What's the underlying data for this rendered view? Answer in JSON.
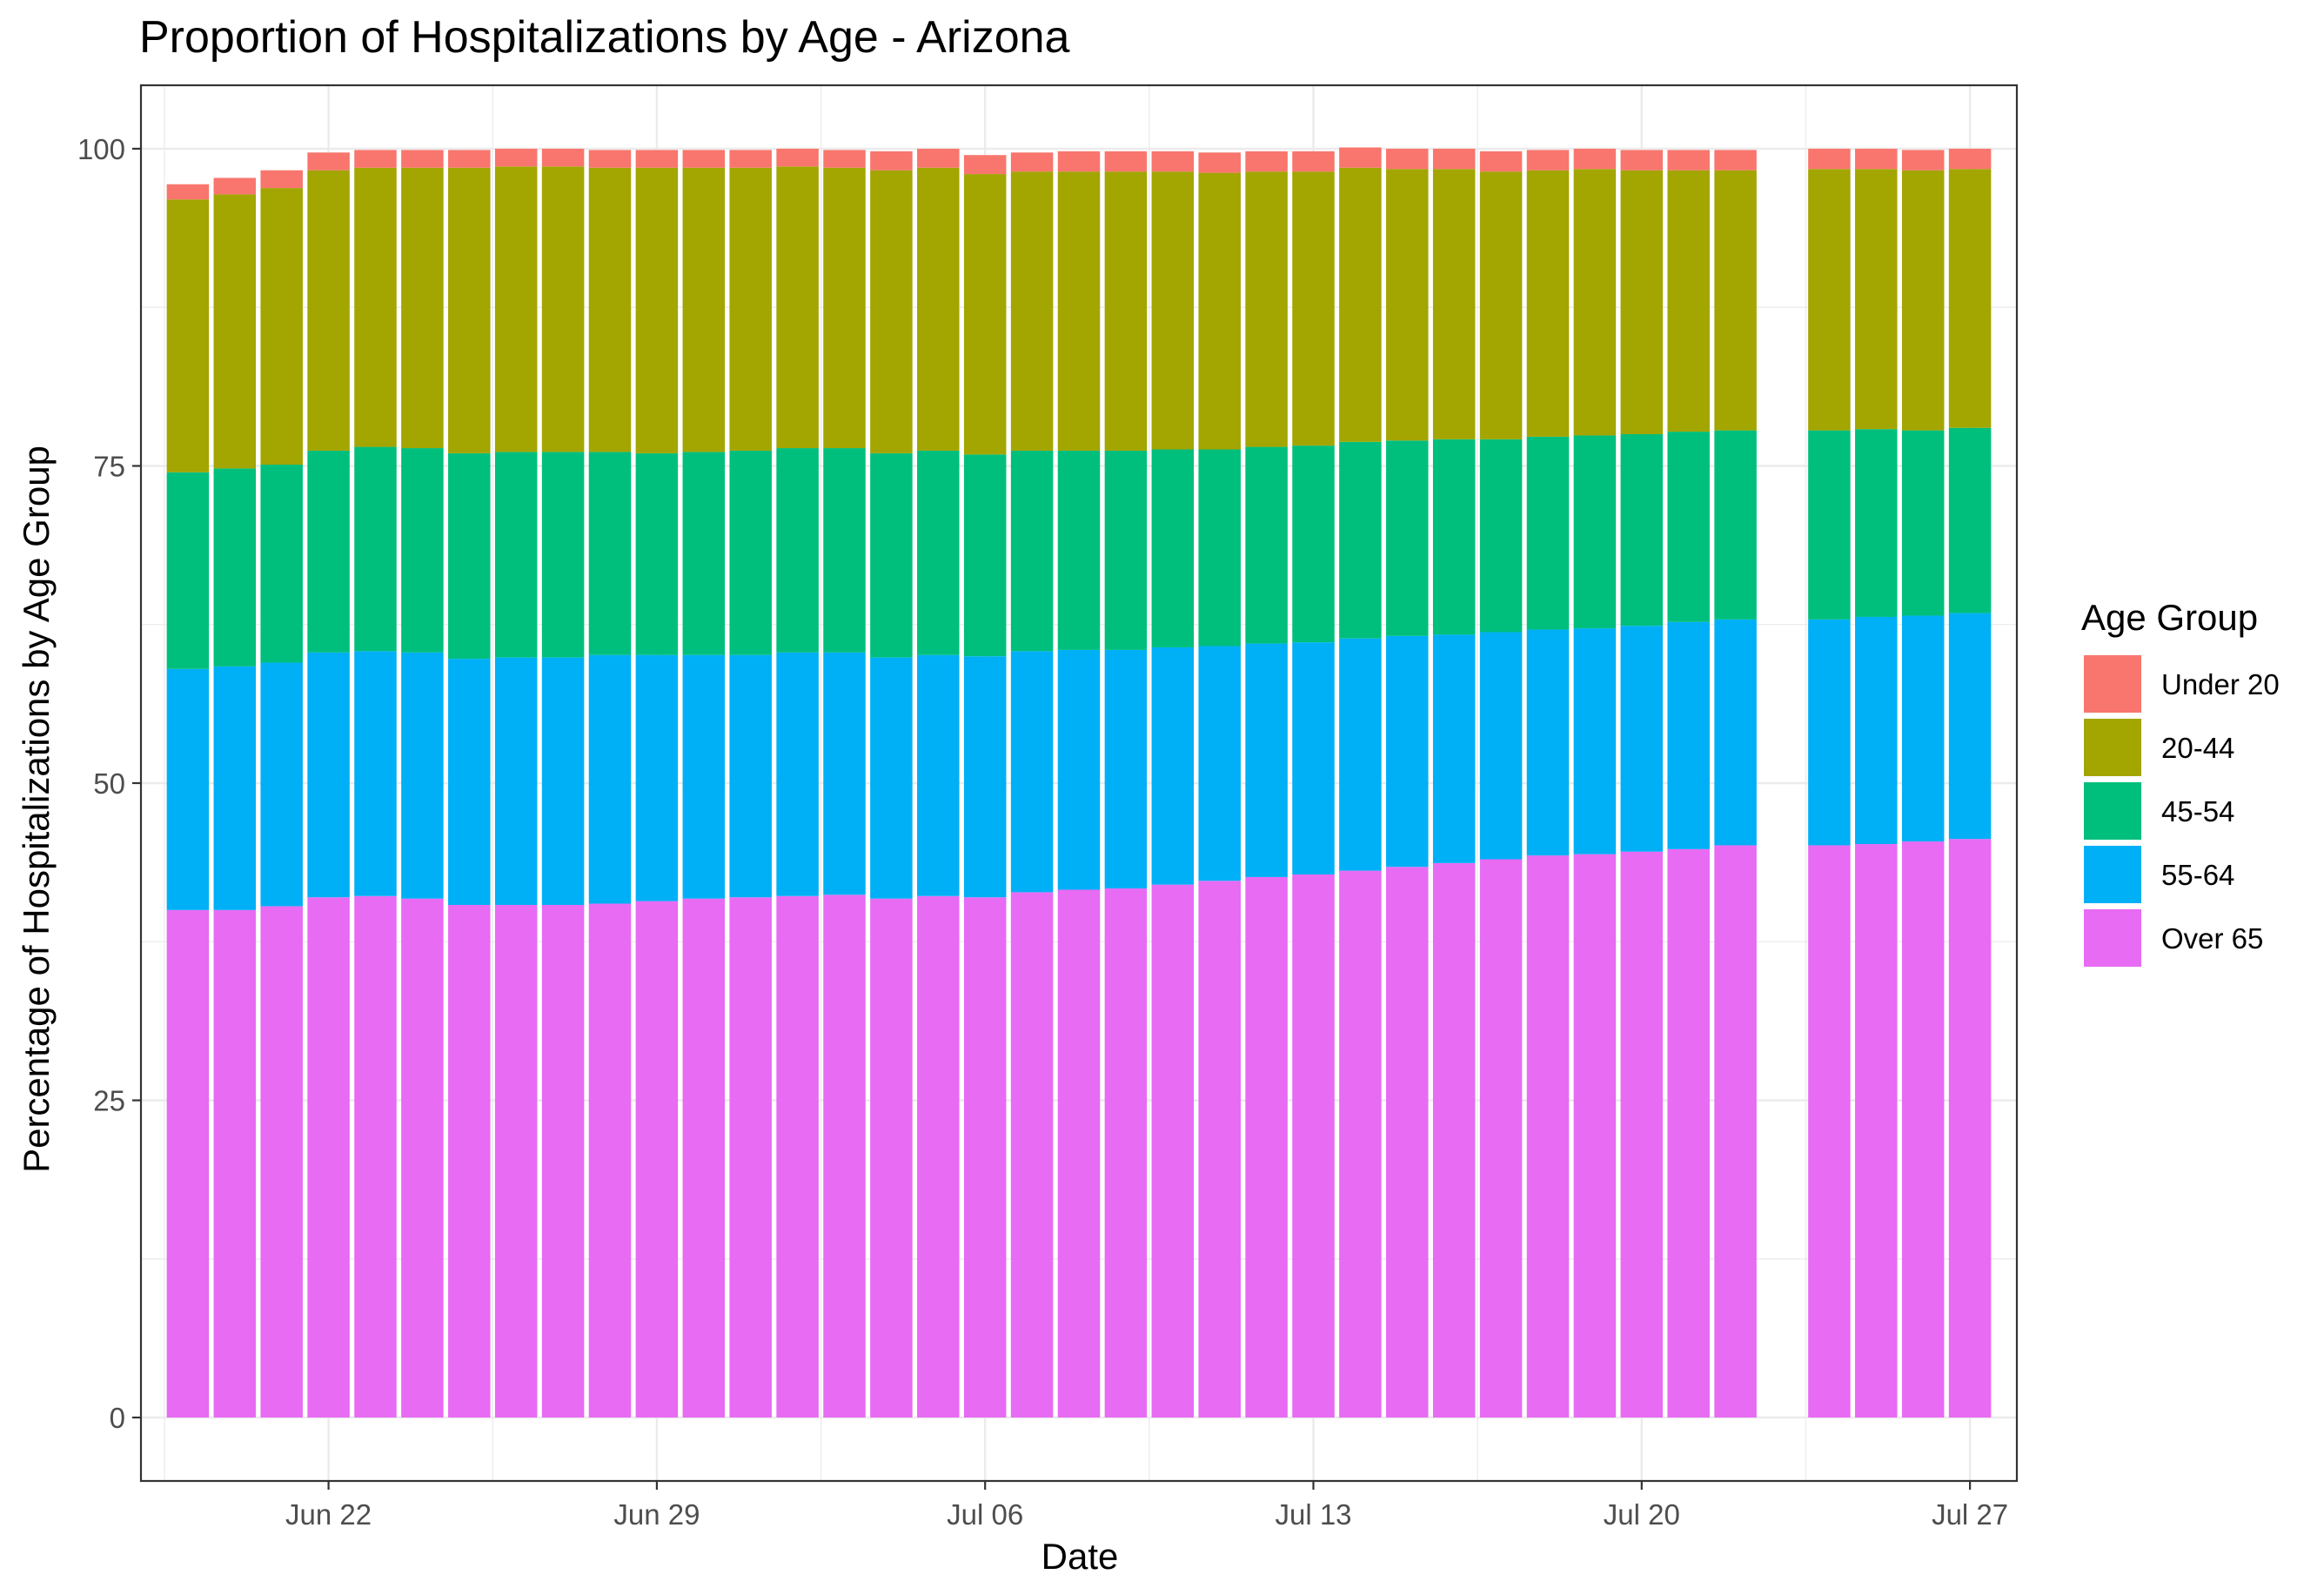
{
  "chart_data": {
    "type": "bar",
    "stacked": true,
    "title": "Proportion of Hospitalizations by Age - Arizona",
    "xlabel": "Date",
    "ylabel": "Percentage of Hospitalizations by Age Group",
    "ylim": [
      -5,
      105
    ],
    "yticks": [
      0,
      25,
      50,
      75,
      100
    ],
    "x_tick_labels": [
      "Jun 22",
      "Jun 29",
      "Jul 06",
      "Jul 13",
      "Jul 20",
      "Jul 27"
    ],
    "x_tick_dates": [
      "2020-06-22",
      "2020-06-29",
      "2020-07-06",
      "2020-07-13",
      "2020-07-20",
      "2020-07-27"
    ],
    "xlim": [
      "2020-06-18",
      "2020-07-28"
    ],
    "grid": true,
    "legend_position": "right",
    "legend_title": "Age Group",
    "dates": [
      "2020-06-19",
      "2020-06-20",
      "2020-06-21",
      "2020-06-22",
      "2020-06-23",
      "2020-06-24",
      "2020-06-25",
      "2020-06-26",
      "2020-06-27",
      "2020-06-28",
      "2020-06-29",
      "2020-06-30",
      "2020-07-01",
      "2020-07-02",
      "2020-07-03",
      "2020-07-04",
      "2020-07-05",
      "2020-07-06",
      "2020-07-07",
      "2020-07-08",
      "2020-07-09",
      "2020-07-10",
      "2020-07-11",
      "2020-07-12",
      "2020-07-13",
      "2020-07-14",
      "2020-07-15",
      "2020-07-16",
      "2020-07-17",
      "2020-07-18",
      "2020-07-19",
      "2020-07-20",
      "2020-07-21",
      "2020-07-22",
      "2020-07-24",
      "2020-07-25",
      "2020-07-26",
      "2020-07-27"
    ],
    "series": [
      {
        "name": "Under 20",
        "color": "#F8766D",
        "values": [
          1.2,
          1.3,
          1.4,
          1.4,
          1.4,
          1.4,
          1.4,
          1.4,
          1.4,
          1.4,
          1.4,
          1.4,
          1.4,
          1.4,
          1.4,
          1.5,
          1.5,
          1.5,
          1.5,
          1.6,
          1.6,
          1.6,
          1.6,
          1.6,
          1.6,
          1.6,
          1.6,
          1.6,
          1.6,
          1.6,
          1.6,
          1.6,
          1.6,
          1.6,
          1.6,
          1.6,
          1.6,
          1.6
        ]
      },
      {
        "name": "20-44",
        "color": "#A3A500",
        "values": [
          21.5,
          21.6,
          21.8,
          22.1,
          22.0,
          22.1,
          22.5,
          22.5,
          22.5,
          22.4,
          22.5,
          22.4,
          22.3,
          22.2,
          22.1,
          22.3,
          22.3,
          22.1,
          22.0,
          22.0,
          22.0,
          21.9,
          21.8,
          21.7,
          21.6,
          21.6,
          21.4,
          21.3,
          21.1,
          21.0,
          21.0,
          20.8,
          20.6,
          20.5,
          20.6,
          20.5,
          20.5,
          20.4
        ]
      },
      {
        "name": "45-54",
        "color": "#00BF7D",
        "values": [
          15.5,
          15.6,
          15.6,
          15.9,
          16.1,
          16.1,
          16.2,
          16.2,
          16.2,
          16.0,
          15.9,
          16.0,
          16.1,
          16.1,
          16.1,
          16.1,
          16.1,
          15.9,
          15.8,
          15.7,
          15.7,
          15.6,
          15.5,
          15.5,
          15.5,
          15.5,
          15.4,
          15.4,
          15.2,
          15.2,
          15.2,
          15.1,
          15.0,
          14.9,
          14.9,
          14.8,
          14.6,
          14.6
        ]
      },
      {
        "name": "55-64",
        "color": "#00B0F6",
        "values": [
          19.0,
          19.2,
          19.2,
          19.3,
          19.3,
          19.4,
          19.4,
          19.5,
          19.5,
          19.6,
          19.4,
          19.2,
          19.1,
          19.2,
          19.1,
          19.0,
          19.0,
          19.0,
          19.0,
          18.9,
          18.8,
          18.7,
          18.5,
          18.4,
          18.3,
          18.3,
          18.2,
          18.0,
          17.9,
          17.8,
          17.8,
          17.8,
          17.9,
          17.8,
          17.8,
          17.9,
          17.8,
          17.8
        ]
      },
      {
        "name": "Over 65",
        "color": "#E76BF3",
        "values": [
          40.0,
          40.0,
          40.3,
          41.0,
          41.1,
          40.9,
          40.4,
          40.4,
          40.4,
          40.5,
          40.7,
          40.9,
          41.0,
          41.1,
          41.2,
          40.9,
          41.1,
          41.0,
          41.4,
          41.6,
          41.7,
          42.0,
          42.3,
          42.6,
          42.8,
          43.1,
          43.4,
          43.7,
          44.0,
          44.3,
          44.4,
          44.6,
          44.8,
          45.1,
          45.1,
          45.2,
          45.4,
          45.6
        ]
      }
    ]
  }
}
